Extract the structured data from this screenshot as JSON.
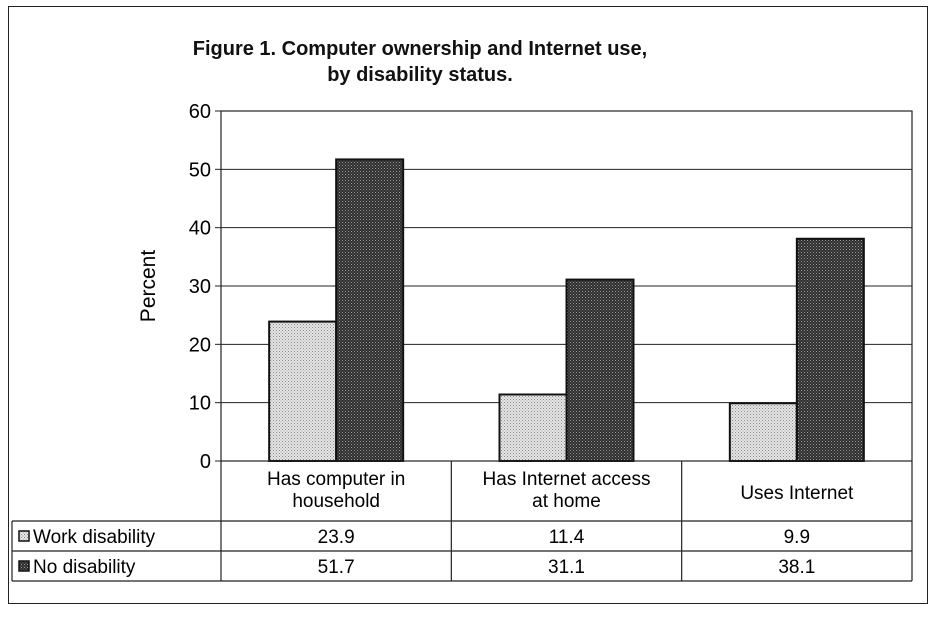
{
  "chart_data": {
    "type": "bar",
    "title": "Figure 1.  Computer ownership and Internet use,",
    "subtitle": "by disability status.",
    "ylabel": "Percent",
    "xlabel": "",
    "ylim": [
      0,
      60
    ],
    "yticks": [
      0,
      10,
      20,
      30,
      40,
      50,
      60
    ],
    "grid": true,
    "categories": [
      [
        "Has computer in",
        "household"
      ],
      [
        "Has Internet access",
        "at home"
      ],
      [
        "Uses Internet"
      ]
    ],
    "series": [
      {
        "name": "Work disability",
        "values": [
          23.9,
          11.4,
          9.9
        ],
        "value_labels": [
          "23.9",
          "11.4",
          "9.9"
        ],
        "color": "#cfcfcf"
      },
      {
        "name": "No disability",
        "values": [
          51.7,
          31.1,
          38.1
        ],
        "value_labels": [
          "51.7",
          "31.1",
          "38.1"
        ],
        "color": "#3a3a3a"
      }
    ],
    "legend": "data-table"
  }
}
